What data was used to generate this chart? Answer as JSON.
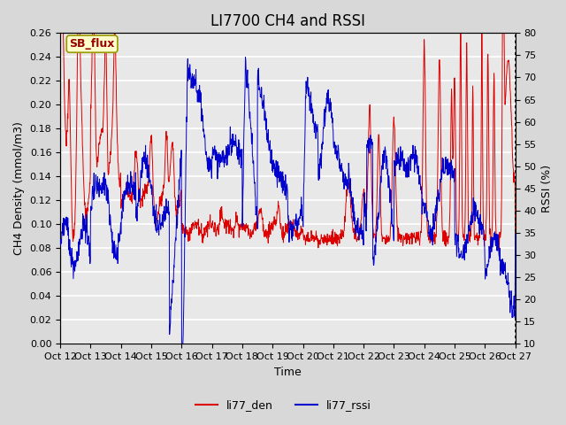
{
  "title": "LI7700 CH4 and RSSI",
  "xlabel": "Time",
  "ylabel_left": "CH4 Density (mmol/m3)",
  "ylabel_right": "RSSI (%)",
  "annotation": "SB_flux",
  "ylim_left": [
    0.0,
    0.26
  ],
  "ylim_right": [
    10,
    80
  ],
  "yticks_left": [
    0.0,
    0.02,
    0.04,
    0.06,
    0.08,
    0.1,
    0.12,
    0.14,
    0.16,
    0.18,
    0.2,
    0.22,
    0.24,
    0.26
  ],
  "yticks_right": [
    10,
    15,
    20,
    25,
    30,
    35,
    40,
    45,
    50,
    55,
    60,
    65,
    70,
    75,
    80
  ],
  "xtick_labels": [
    "Oct 12",
    "Oct 13",
    "Oct 14",
    "Oct 15",
    "Oct 16",
    "Oct 17",
    "Oct 18",
    "Oct 19",
    "Oct 20",
    "Oct 21",
    "Oct 22",
    "Oct 23",
    "Oct 24",
    "Oct 25",
    "Oct 26",
    "Oct 27"
  ],
  "color_red": "#dd0000",
  "color_blue": "#0000cc",
  "background_color": "#e8e8e8",
  "grid_color": "#ffffff",
  "fig_facecolor": "#d8d8d8",
  "legend_label_red": "li77_den",
  "legend_label_blue": "li77_rssi",
  "title_fontsize": 12,
  "axis_label_fontsize": 9,
  "tick_fontsize": 8,
  "legend_fontsize": 9,
  "annotation_color": "#990000",
  "annotation_face": "#ffffcc",
  "annotation_edge": "#999900"
}
